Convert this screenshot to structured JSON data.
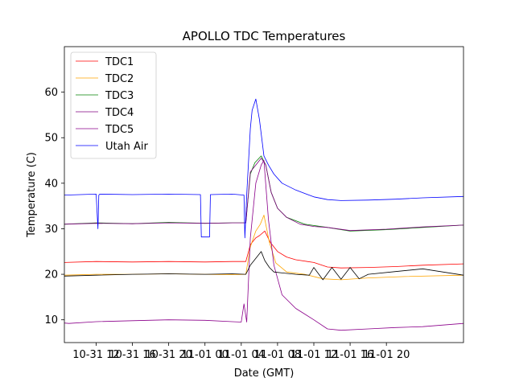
{
  "chart_data": {
    "type": "line",
    "title": "APOLLO TDC Temperatures",
    "xlabel": "Date (GMT)",
    "ylabel": "Temperature (C)",
    "xlim": [
      6.5,
      50.5
    ],
    "ylim": [
      5,
      70
    ],
    "grid": false,
    "legend": "top-left",
    "x_unit": "hours since 2023-10-31 00:00 GMT",
    "x_ticks": [
      {
        "value": 10,
        "label": "10-31 12"
      },
      {
        "value": 14,
        "label": "10-31 16"
      },
      {
        "value": 18,
        "label": "10-31 20"
      },
      {
        "value": 22,
        "label": "11-01 00"
      },
      {
        "value": 26,
        "label": "11-01 04"
      },
      {
        "value": 30,
        "label": "11-01 08"
      },
      {
        "value": 34,
        "label": "11-01 12"
      },
      {
        "value": 38,
        "label": "11-01 16"
      },
      {
        "value": 42,
        "label": "11-01 20"
      }
    ],
    "y_ticks": [
      10,
      20,
      30,
      40,
      50,
      60
    ],
    "series": [
      {
        "name": "TDC1",
        "color": "#ff0000",
        "x": [
          6.5,
          10,
          14,
          18,
          22,
          25,
          26.5,
          27.0,
          27.6,
          28.0,
          28.6,
          29.2,
          30,
          31,
          32,
          34,
          35.5,
          37,
          40,
          43,
          46,
          50.5
        ],
        "y": [
          22.6,
          22.8,
          22.7,
          22.8,
          22.7,
          22.8,
          22.8,
          26.5,
          28.0,
          28.5,
          29.5,
          27.0,
          25.0,
          23.8,
          23.2,
          22.6,
          21.6,
          21.4,
          21.5,
          21.7,
          22.0,
          22.3
        ]
      },
      {
        "name": "TDC2",
        "color": "#ffa500",
        "x": [
          6.5,
          10,
          14,
          18,
          22,
          25,
          26.5,
          27.0,
          27.6,
          28.1,
          28.5,
          29.1,
          29.8,
          31,
          33,
          35,
          37,
          40,
          44,
          50.5
        ],
        "y": [
          19.8,
          20.0,
          20.0,
          20.1,
          20.0,
          19.9,
          20.0,
          26.0,
          29.5,
          31.0,
          33.0,
          27.0,
          22.5,
          20.5,
          20.0,
          19.0,
          18.8,
          19.2,
          19.5,
          19.8
        ]
      },
      {
        "name": "TDC3",
        "color": "#008000",
        "x": [
          6.5,
          10,
          14,
          18,
          22,
          25,
          26.5,
          27.0,
          27.5,
          28.2,
          28.7,
          29.3,
          30,
          31,
          33,
          35.5,
          38,
          42,
          46,
          50.5
        ],
        "y": [
          31.0,
          31.3,
          31.1,
          31.4,
          31.2,
          31.3,
          31.3,
          42.0,
          44.5,
          46.0,
          44.0,
          38.0,
          34.5,
          32.5,
          31.0,
          30.3,
          29.5,
          29.8,
          30.3,
          30.8
        ]
      },
      {
        "name": "TDC4",
        "color": "#800080",
        "x": [
          6.5,
          10,
          14,
          18,
          22,
          25,
          26.5,
          27.0,
          27.6,
          28.2,
          28.7,
          29.3,
          30,
          31,
          32.5,
          34,
          35.5,
          38,
          42,
          46,
          50.5
        ],
        "y": [
          31.0,
          31.2,
          31.1,
          31.3,
          31.2,
          31.3,
          31.3,
          42.5,
          44.0,
          45.5,
          44.0,
          38.0,
          34.5,
          32.5,
          31.0,
          30.5,
          30.3,
          29.6,
          29.9,
          30.4,
          30.8
        ]
      },
      {
        "name": "TDC5",
        "color": "#8b008b",
        "x": [
          6.5,
          7,
          10,
          14,
          18,
          22,
          25,
          26.0,
          26.3,
          26.6,
          27.0,
          27.6,
          28.2,
          28.5,
          29.0,
          29.6,
          30.5,
          32,
          34,
          35.5,
          37,
          40,
          43,
          46,
          50.5
        ],
        "y": [
          9.3,
          9.2,
          9.6,
          9.8,
          10.0,
          9.9,
          9.6,
          9.5,
          13.5,
          9.5,
          28.0,
          40.0,
          44.0,
          45.0,
          32.0,
          22.0,
          15.5,
          12.5,
          10.0,
          8.0,
          7.7,
          8.0,
          8.3,
          8.5,
          9.2
        ]
      },
      {
        "name": "Utah Air",
        "color": "#0000ff",
        "x": [
          6.5,
          10,
          10.2,
          10.3,
          10.4,
          14,
          18,
          21.5,
          21.6,
          22.5,
          22.6,
          25,
          26.3,
          26.4,
          26.6,
          27.0,
          27.2,
          27.6,
          28.0,
          28.5,
          29.0,
          29.6,
          30.5,
          32,
          34,
          35.5,
          37,
          40,
          43,
          46,
          50.5
        ],
        "y": [
          37.4,
          37.6,
          30.0,
          37.4,
          37.6,
          37.5,
          37.6,
          37.5,
          28.2,
          28.2,
          37.5,
          37.6,
          37.4,
          28.0,
          37.5,
          52.0,
          56.0,
          58.5,
          54.0,
          46.0,
          44.0,
          42.0,
          40.0,
          38.5,
          37.0,
          36.4,
          36.2,
          36.3,
          36.5,
          36.8,
          37.1
        ]
      },
      {
        "name": "",
        "color": "#000000",
        "x": [
          6.5,
          10,
          14,
          18,
          22,
          25,
          26.5,
          27.0,
          27.6,
          28.2,
          28.6,
          29.1,
          29.6,
          30.5,
          32,
          33.5,
          34,
          35,
          36,
          37,
          38,
          39,
          40,
          43,
          46,
          50.5
        ],
        "y": [
          19.6,
          19.8,
          20.0,
          20.1,
          20.0,
          20.1,
          20.0,
          22.0,
          23.5,
          25.0,
          23.0,
          21.5,
          20.5,
          20.3,
          20.0,
          19.8,
          21.5,
          18.8,
          21.5,
          18.9,
          21.5,
          19.0,
          20.0,
          20.6,
          21.2,
          19.8
        ]
      }
    ]
  }
}
